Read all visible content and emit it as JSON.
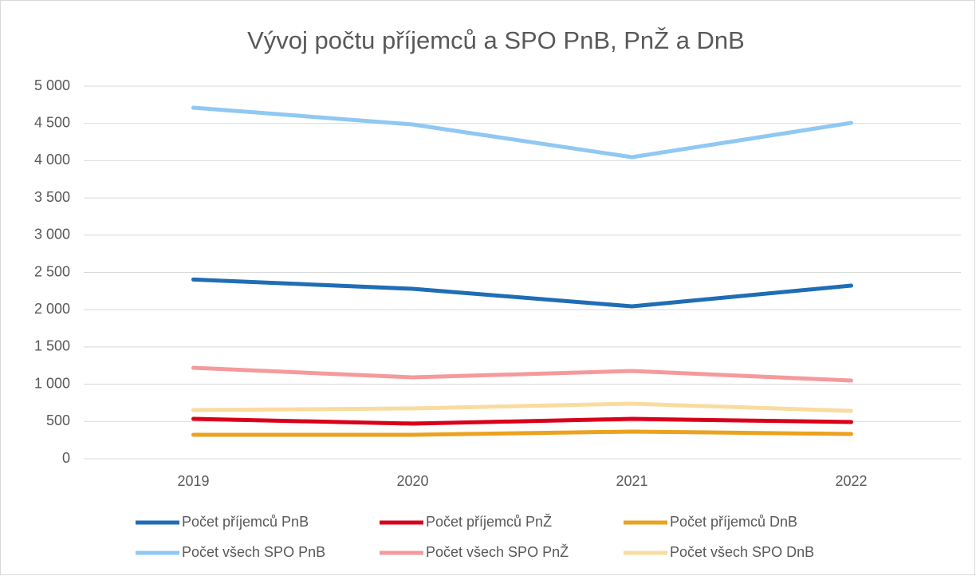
{
  "chart_data": {
    "type": "line",
    "title": "Vývoj počtu příjemců a SPO PnB, PnŽ a DnB",
    "categories": [
      "2019",
      "2020",
      "2021",
      "2022"
    ],
    "series": [
      {
        "name": "Počet příjemců PnB",
        "color": "#1f6db5",
        "values": [
          2405,
          2280,
          2045,
          2323
        ]
      },
      {
        "name": "Počet příjemců PnŽ",
        "color": "#d9001b",
        "values": [
          535,
          471,
          535,
          492
        ]
      },
      {
        "name": "Počet příjemců DnB",
        "color": "#eba21f",
        "values": [
          321,
          321,
          364,
          332
        ]
      },
      {
        "name": "Počet všech SPO PnB",
        "color": "#8fc8f2",
        "values": [
          4711,
          4486,
          4047,
          4507
        ]
      },
      {
        "name": "Počet všech SPO PnŽ",
        "color": "#f59a9c",
        "values": [
          1220,
          1092,
          1178,
          1049
        ]
      },
      {
        "name": "Počet všech SPO DnB",
        "color": "#f8dc9f",
        "values": [
          653,
          675,
          739,
          642
        ]
      }
    ],
    "ylim": [
      0,
      5000
    ],
    "yticks": [
      0,
      500,
      {
        "value": 1000,
        "label": "1 000"
      },
      {
        "value": 1500,
        "label": "1 500"
      },
      {
        "value": 2000,
        "label": "2 000"
      },
      {
        "value": 2500,
        "label": "2 500"
      },
      {
        "value": 3000,
        "label": "3 000"
      },
      {
        "value": 3500,
        "label": "3 500"
      },
      {
        "value": 4000,
        "label": "4 000"
      },
      {
        "value": 4500,
        "label": "4 500"
      },
      {
        "value": 5000,
        "label": "5 000"
      }
    ],
    "grid": true,
    "legend": "bottom"
  }
}
